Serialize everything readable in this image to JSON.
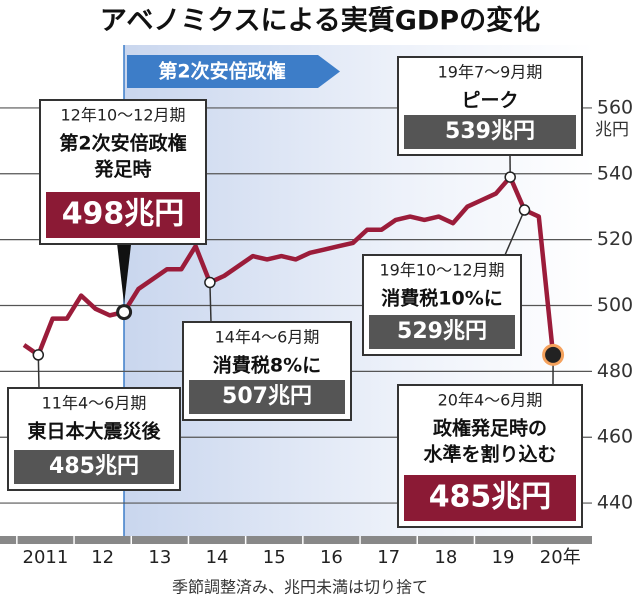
{
  "chart_data": {
    "type": "line",
    "title": "アベノミクスによる実質GDPの変化",
    "period_label": "第2次安倍政権",
    "y_unit": "兆円",
    "note": "季節調整済み、兆円未満は切り捨て",
    "categories": [
      null,
      "2011",
      null,
      null,
      null,
      "12",
      null,
      null,
      null,
      "13",
      null,
      null,
      null,
      "14",
      null,
      null,
      null,
      "15",
      null,
      null,
      null,
      "16",
      null,
      null,
      null,
      "17",
      null,
      null,
      null,
      "18",
      null,
      null,
      null,
      "19",
      null,
      null,
      null,
      "20年"
    ],
    "series": [
      {
        "name": "実質GDP",
        "color": "#9b1c3a",
        "values": [
          488,
          485,
          496,
          496,
          503,
          499,
          497,
          498,
          505,
          508,
          511,
          511,
          518,
          507,
          509,
          512,
          515,
          514,
          515,
          514,
          516,
          517,
          518,
          519,
          523,
          523,
          526,
          527,
          526,
          527,
          525,
          530,
          532,
          534,
          539,
          529,
          527,
          485
        ],
        "value_labels": [
          null,
          "485兆円",
          null,
          null,
          null,
          null,
          null,
          "498兆円",
          null,
          null,
          null,
          null,
          null,
          "507兆円",
          null,
          null,
          null,
          null,
          null,
          null,
          null,
          null,
          null,
          null,
          null,
          null,
          null,
          null,
          null,
          null,
          null,
          null,
          null,
          null,
          "539兆円",
          "529兆円",
          null,
          "485兆円"
        ]
      }
    ],
    "annotations": [
      {
        "period": "11年4〜6月期",
        "lines": [
          "東日本大震災後"
        ]
      },
      {
        "period": "12年10〜12月期",
        "lines": [
          "第2次安倍政権",
          "発足時"
        ]
      },
      {
        "period": "14年4〜6月期",
        "lines": [
          "消費税8%に"
        ]
      },
      {
        "period": "19年7〜9月期",
        "lines": [
          "ピーク"
        ]
      },
      {
        "period": "19年10〜12月期",
        "lines": [
          "消費税10%に"
        ]
      },
      {
        "period": "20年4〜6月期",
        "lines": [
          "政権発足時の",
          "水準を割り込む"
        ]
      }
    ],
    "ylim": [
      430,
      570
    ],
    "yticks": [
      440,
      460,
      480,
      500,
      520,
      540,
      560
    ],
    "grid": true
  }
}
